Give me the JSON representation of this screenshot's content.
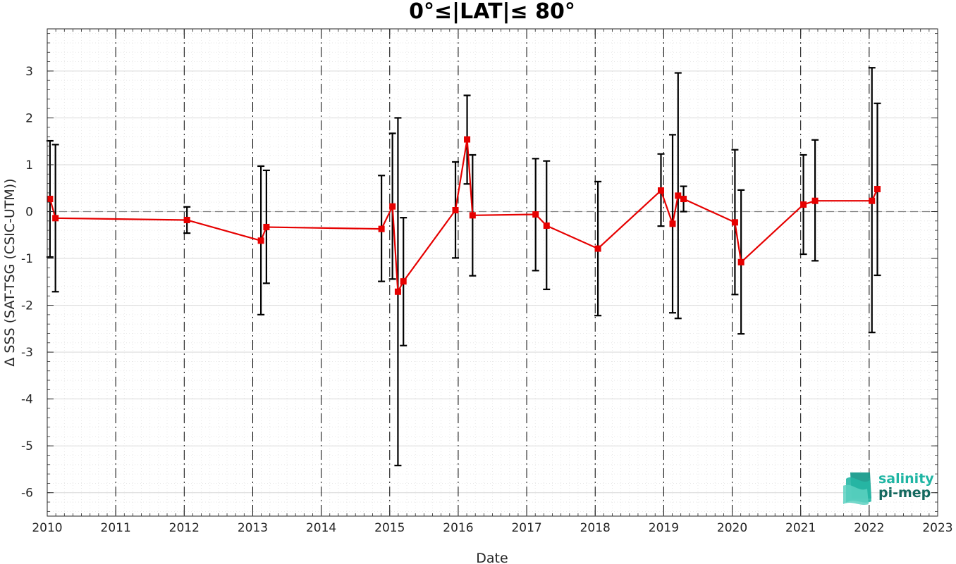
{
  "chart_data": {
    "type": "line",
    "title": "0°≤|LAT|≤ 80°",
    "xlabel": "Date",
    "ylabel": "Δ SSS (SAT-TSG (CSIC-UTM))",
    "xlim": [
      2010,
      2023
    ],
    "ylim": [
      -6.5,
      3.9
    ],
    "x_ticks": [
      "2010",
      "2011",
      "2012",
      "2013",
      "2014",
      "2015",
      "2016",
      "2017",
      "2018",
      "2019",
      "2020",
      "2021",
      "2022",
      "2023"
    ],
    "y_ticks": [
      "-6",
      "-5",
      "-4",
      "-3",
      "-2",
      "-1",
      "0",
      "1",
      "2",
      "3"
    ],
    "grid": true,
    "zero_line": 0,
    "colors": {
      "series": "#e60000",
      "errorbar": "#000000",
      "vlines": "#000000",
      "grid": "#d9d9d9"
    },
    "series": [
      {
        "points": [
          {
            "x": 2010.04,
            "y": 0.27,
            "ylow": -0.97,
            "yhigh": 1.51
          },
          {
            "x": 2010.12,
            "y": -0.14,
            "ylow": -1.71,
            "yhigh": 1.43
          },
          {
            "x": 2012.04,
            "y": -0.18,
            "ylow": -0.46,
            "yhigh": 0.1
          },
          {
            "x": 2013.12,
            "y": -0.62,
            "ylow": -2.2,
            "yhigh": 0.97
          },
          {
            "x": 2013.2,
            "y": -0.33,
            "ylow": -1.53,
            "yhigh": 0.88
          },
          {
            "x": 2014.88,
            "y": -0.37,
            "ylow": -1.49,
            "yhigh": 0.77
          },
          {
            "x": 2015.04,
            "y": 0.11,
            "ylow": -1.44,
            "yhigh": 1.67
          },
          {
            "x": 2015.12,
            "y": -1.71,
            "ylow": -5.42,
            "yhigh": 2.0
          },
          {
            "x": 2015.2,
            "y": -1.49,
            "ylow": -2.86,
            "yhigh": -0.13
          },
          {
            "x": 2015.96,
            "y": 0.03,
            "ylow": -0.99,
            "yhigh": 1.06
          },
          {
            "x": 2016.13,
            "y": 1.54,
            "ylow": 0.59,
            "yhigh": 2.48
          },
          {
            "x": 2016.21,
            "y": -0.08,
            "ylow": -1.37,
            "yhigh": 1.21
          },
          {
            "x": 2017.13,
            "y": -0.06,
            "ylow": -1.26,
            "yhigh": 1.13
          },
          {
            "x": 2017.29,
            "y": -0.3,
            "ylow": -1.66,
            "yhigh": 1.08
          },
          {
            "x": 2018.04,
            "y": -0.79,
            "ylow": -2.22,
            "yhigh": 0.64
          },
          {
            "x": 2018.96,
            "y": 0.45,
            "ylow": -0.31,
            "yhigh": 1.23
          },
          {
            "x": 2019.13,
            "y": -0.26,
            "ylow": -2.16,
            "yhigh": 1.64
          },
          {
            "x": 2019.21,
            "y": 0.34,
            "ylow": -2.28,
            "yhigh": 2.96
          },
          {
            "x": 2019.29,
            "y": 0.27,
            "ylow": 0.0,
            "yhigh": 0.54
          },
          {
            "x": 2020.04,
            "y": -0.23,
            "ylow": -1.77,
            "yhigh": 1.32
          },
          {
            "x": 2020.13,
            "y": -1.08,
            "ylow": -2.61,
            "yhigh": 0.46
          },
          {
            "x": 2021.04,
            "y": 0.15,
            "ylow": -0.91,
            "yhigh": 1.21
          },
          {
            "x": 2021.21,
            "y": 0.23,
            "ylow": -1.05,
            "yhigh": 1.53
          },
          {
            "x": 2022.04,
            "y": 0.23,
            "ylow": -2.58,
            "yhigh": 3.07
          },
          {
            "x": 2022.12,
            "y": 0.48,
            "ylow": -1.36,
            "yhigh": 2.31
          }
        ]
      }
    ]
  },
  "logo": {
    "line1": "salinity",
    "line2": "pi-mep",
    "line1_color": "#1fb5a3",
    "line2_color": "#14695f"
  }
}
